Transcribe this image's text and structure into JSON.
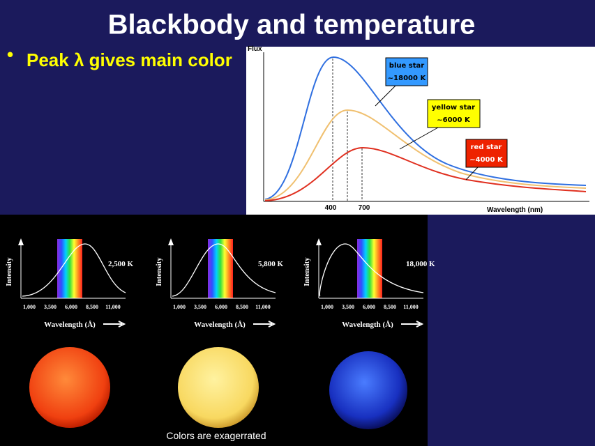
{
  "title": "Blackbody and temperature",
  "bullets": [
    "Peak λ gives main color"
  ],
  "flux_chart": {
    "y_label": "Flux",
    "x_label": "Wavelength (nm)",
    "x_ticks": [
      "400",
      "700"
    ],
    "callouts": [
      {
        "name": "blue star",
        "temp": "~18000 K"
      },
      {
        "name": "yellow star",
        "temp": "~6000 K"
      },
      {
        "name": "red star",
        "temp": "~4000 K"
      }
    ]
  },
  "spectra": [
    {
      "temperature": "2,500 K",
      "y_label": "Intensity",
      "x_label": "Wavelength (Å)",
      "x_ticks": [
        "1,000",
        "3,500",
        "6,000",
        "8,500",
        "11,000"
      ]
    },
    {
      "temperature": "5,800 K",
      "y_label": "Intensity",
      "x_label": "Wavelength (Å)",
      "x_ticks": [
        "1,000",
        "3,500",
        "6,000",
        "8,500",
        "11,000"
      ]
    },
    {
      "temperature": "18,000 K",
      "y_label": "Intensity",
      "x_label": "Wavelength (Å)",
      "x_ticks": [
        "1,000",
        "3,500",
        "6,000",
        "8,500",
        "11,000"
      ]
    }
  ],
  "footnote": "Colors are exagerrated"
}
